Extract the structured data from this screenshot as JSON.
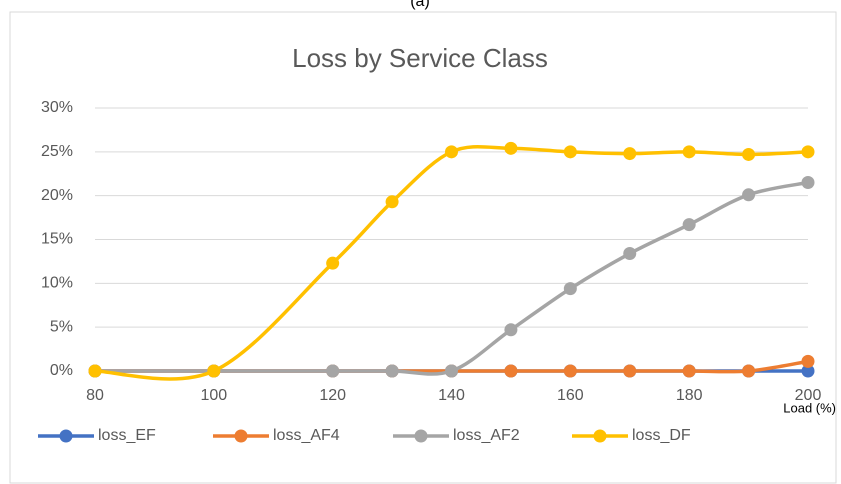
{
  "chart_data": {
    "type": "line",
    "annotation": "(a)",
    "title": "Loss by Service Class",
    "x_label": "Load (%)",
    "x": [
      80,
      100,
      120,
      130,
      140,
      150,
      160,
      170,
      180,
      190,
      200
    ],
    "series": [
      {
        "name": "loss_EF",
        "color": "#4472c4",
        "values": [
          0,
          0,
          0,
          0,
          0,
          0,
          0,
          0,
          0,
          0,
          0
        ]
      },
      {
        "name": "loss_AF4",
        "color": "#ed7d31",
        "values": [
          0,
          0,
          0,
          0,
          0,
          0,
          0,
          0,
          0,
          0,
          1.1
        ]
      },
      {
        "name": "loss_AF2",
        "color": "#a5a5a5",
        "values": [
          0,
          0,
          0,
          0,
          0,
          4.7,
          9.4,
          13.4,
          16.7,
          20.1,
          21.5
        ]
      },
      {
        "name": "loss_DF",
        "color": "#ffc000",
        "values": [
          0,
          0,
          12.3,
          19.3,
          25.0,
          25.4,
          25.0,
          24.8,
          25.0,
          24.7,
          25.0
        ]
      }
    ],
    "xlim": [
      80,
      200
    ],
    "xticks": [
      80,
      100,
      120,
      140,
      160,
      180,
      200
    ],
    "ylim": [
      0,
      30
    ],
    "yticks": [
      {
        "value": 0,
        "label": "0%"
      },
      {
        "value": 5,
        "label": "5%"
      },
      {
        "value": 10,
        "label": "10%"
      },
      {
        "value": 15,
        "label": "15%"
      },
      {
        "value": 20,
        "label": "20%"
      },
      {
        "value": 25,
        "label": "25%"
      },
      {
        "value": 30,
        "label": "30%"
      }
    ],
    "grid": true,
    "smooth": true,
    "legend": "bottom"
  }
}
